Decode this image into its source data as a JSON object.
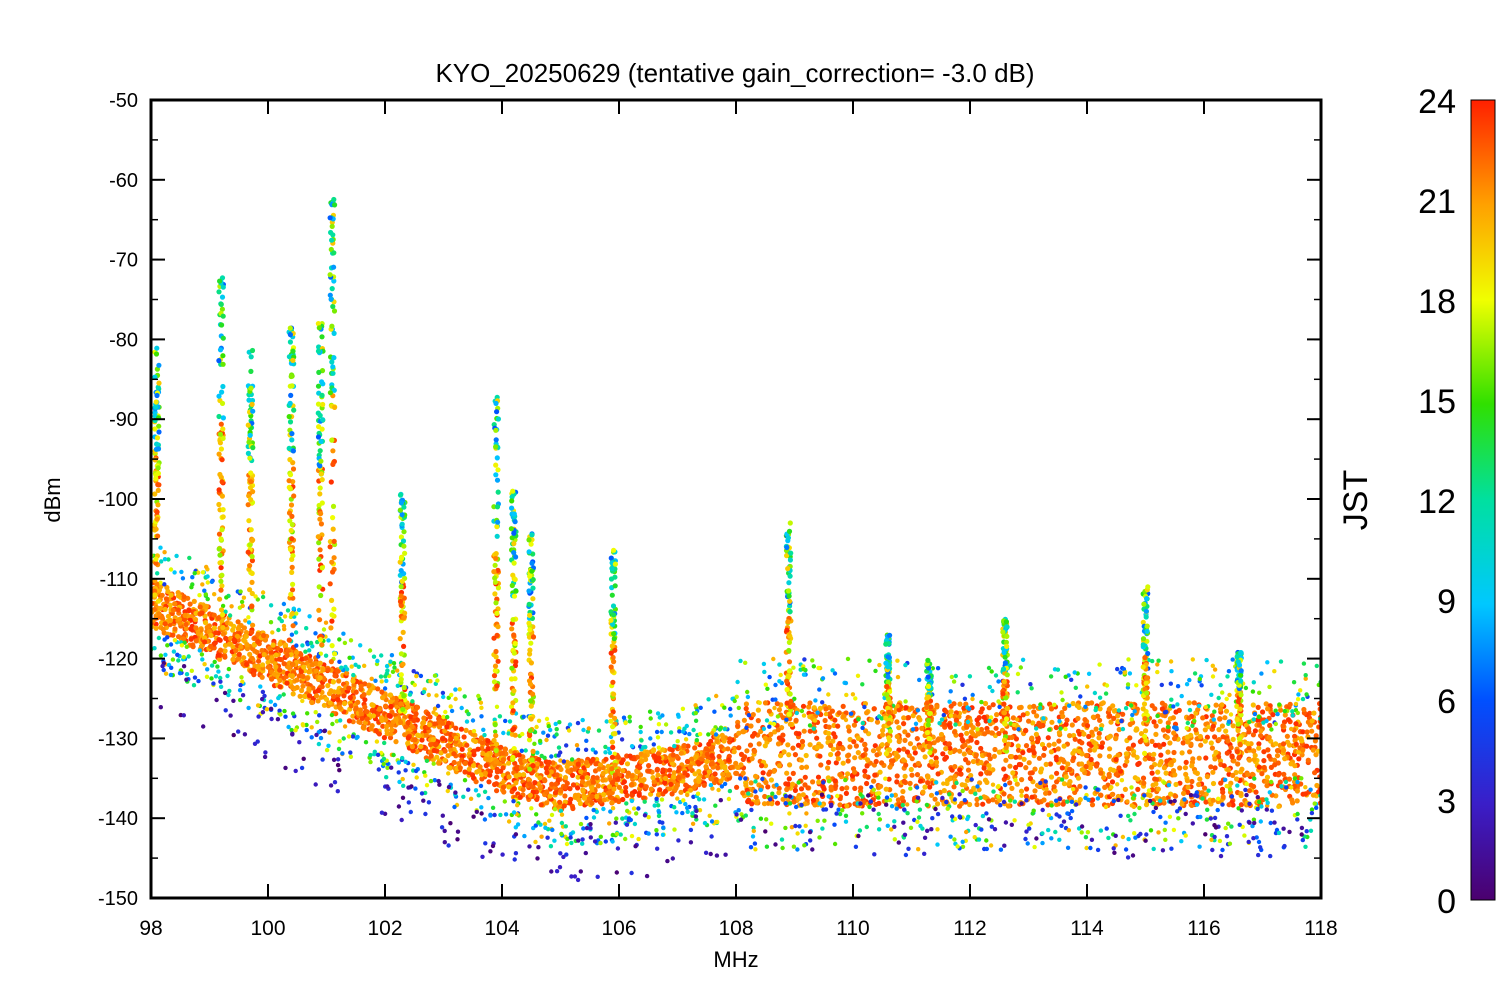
{
  "chart_data": {
    "type": "scatter",
    "title": "KYO_20250629 (tentative gain_correction= -3.0 dB)",
    "xlabel": "MHz",
    "ylabel": "dBm",
    "xlim": [
      98,
      118
    ],
    "ylim": [
      -150,
      -50
    ],
    "xticks": [
      "98",
      "100",
      "102",
      "104",
      "106",
      "108",
      "110",
      "112",
      "114",
      "116",
      "118"
    ],
    "yticks": [
      "-50",
      "-60",
      "-70",
      "-80",
      "-90",
      "-100",
      "-110",
      "-120",
      "-130",
      "-140",
      "-150"
    ],
    "grid": false,
    "color_scale": {
      "label": "JST",
      "min": 0,
      "max": 24,
      "ticks": [
        "0",
        "3",
        "6",
        "9",
        "12",
        "15",
        "18",
        "21",
        "24"
      ],
      "colormap": "rainbow (purple → blue → cyan → green → yellow → orange → red)"
    },
    "series_summary": {
      "note": "Dense spectrum scatter; points colored by JST hour (0–24). Dominant color: red-orange (hours ~22–24).",
      "noise_floor": [
        {
          "x": 98,
          "y": -113
        },
        {
          "x": 100,
          "y": -120
        },
        {
          "x": 102,
          "y": -127
        },
        {
          "x": 104,
          "y": -134
        },
        {
          "x": 105,
          "y": -136
        },
        {
          "x": 106,
          "y": -135
        },
        {
          "x": 107,
          "y": -134
        },
        {
          "x": 108,
          "y": -132
        },
        {
          "x": 110,
          "y": -132
        },
        {
          "x": 112,
          "y": -132
        },
        {
          "x": 114,
          "y": -132
        },
        {
          "x": 116,
          "y": -132
        },
        {
          "x": 118,
          "y": -132
        }
      ],
      "peaks": [
        {
          "x": 98.1,
          "y": -81
        },
        {
          "x": 99.2,
          "y": -72
        },
        {
          "x": 99.7,
          "y": -81
        },
        {
          "x": 100.4,
          "y": -78
        },
        {
          "x": 100.9,
          "y": -78
        },
        {
          "x": 101.1,
          "y": -62
        },
        {
          "x": 102.3,
          "y": -99
        },
        {
          "x": 103.9,
          "y": -87
        },
        {
          "x": 104.2,
          "y": -99
        },
        {
          "x": 104.5,
          "y": -104
        },
        {
          "x": 105.9,
          "y": -106
        },
        {
          "x": 108.9,
          "y": -103
        },
        {
          "x": 110.6,
          "y": -117
        },
        {
          "x": 111.3,
          "y": -120
        },
        {
          "x": 112.6,
          "y": -115
        },
        {
          "x": 115.0,
          "y": -111
        },
        {
          "x": 116.6,
          "y": -119
        }
      ]
    }
  }
}
